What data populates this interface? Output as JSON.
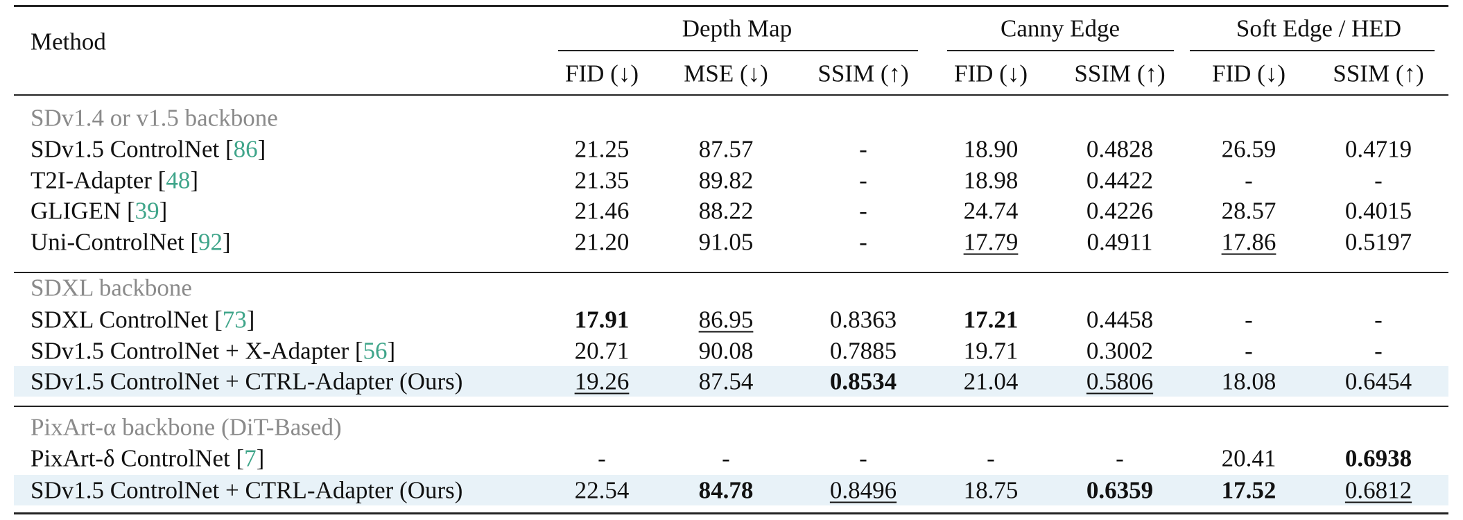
{
  "header": {
    "method": "Method",
    "groups": [
      "Depth Map",
      "Canny Edge",
      "Soft Edge / HED"
    ],
    "columns": [
      "FID (↓)",
      "MSE (↓)",
      "SSIM (↑)",
      "FID (↓)",
      "SSIM (↑)",
      "FID (↓)",
      "SSIM (↑)"
    ]
  },
  "sections": [
    {
      "label": "SDv1.4 or v1.5 backbone",
      "rows": [
        {
          "method": "SDv1.5 ControlNet",
          "ref": "[86]",
          "values": [
            "21.25",
            "87.57",
            "-",
            "18.90",
            "0.4828",
            "26.59",
            "0.4719"
          ]
        },
        {
          "method": "T2I-Adapter",
          "ref": "[48]",
          "values": [
            "21.35",
            "89.82",
            "-",
            "18.98",
            "0.4422",
            "-",
            "-"
          ]
        },
        {
          "method": "GLIGEN",
          "ref": "[39]",
          "values": [
            "21.46",
            "88.22",
            "-",
            "24.74",
            "0.4226",
            "28.57",
            "0.4015"
          ]
        },
        {
          "method": "Uni-ControlNet",
          "ref": "[92]",
          "values": [
            "21.20",
            "91.05",
            "-",
            "17.79",
            "0.4911",
            "17.86",
            "0.5197"
          ]
        }
      ]
    },
    {
      "label": "SDXL backbone",
      "rows": [
        {
          "method": "SDXL ControlNet",
          "ref": "[73]",
          "values": [
            "17.91",
            "86.95",
            "0.8363",
            "17.21",
            "0.4458",
            "-",
            "-"
          ]
        },
        {
          "method": "SDv1.5 ControlNet + X-Adapter",
          "ref": "[56]",
          "values": [
            "20.71",
            "90.08",
            "0.7885",
            "19.71",
            "0.3002",
            "-",
            "-"
          ]
        },
        {
          "method": "SDv1.5 ControlNet + CTRL-Adapter (Ours)",
          "values": [
            "19.26",
            "87.54",
            "0.8534",
            "21.04",
            "0.5806",
            "18.08",
            "0.6454"
          ]
        }
      ]
    },
    {
      "label": "PixArt-α backbone (DiT-Based)",
      "rows": [
        {
          "method": "PixArt-δ ControlNet",
          "ref": "[7]",
          "values": [
            "-",
            "-",
            "-",
            "-",
            "-",
            "20.41",
            "0.6938"
          ]
        },
        {
          "method": "SDv1.5 ControlNet + CTRL-Adapter (Ours)",
          "values": [
            "22.54",
            "84.78",
            "0.8496",
            "18.75",
            "0.6359",
            "17.52",
            "0.6812"
          ]
        }
      ]
    }
  ]
}
